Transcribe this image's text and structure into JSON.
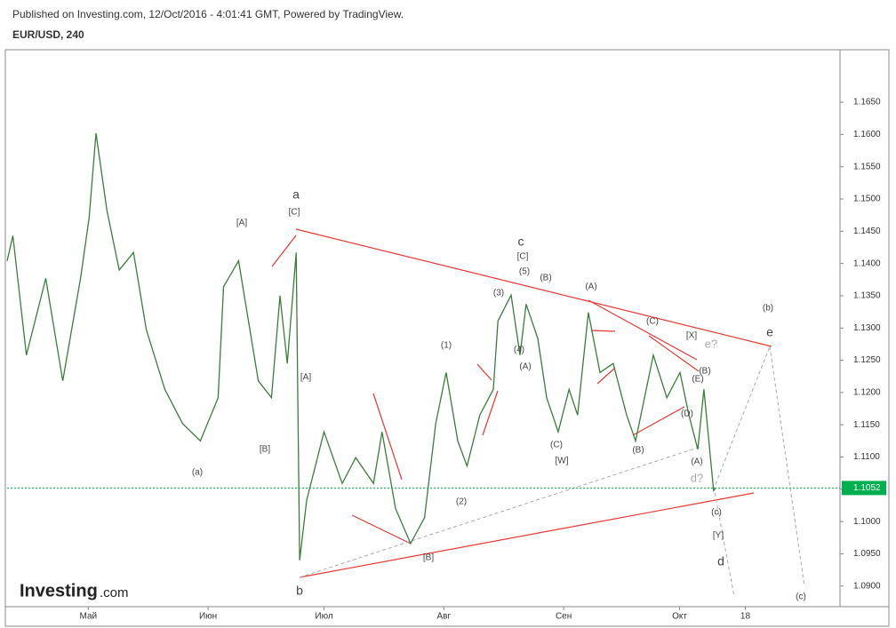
{
  "header": "Published on Investing.com, 12/Oct/2016 - 4:01:41 GMT, Powered by TradingView.",
  "chart_data": {
    "type": "line",
    "title": "EUR/USD, 240",
    "logo": "Investing",
    "logo_suffix": ".com",
    "x": [
      -21,
      -19.5,
      -16,
      -11,
      -6.6,
      -2,
      0.2,
      2,
      4.8,
      8,
      11.7,
      15,
      19.8,
      24.4,
      29,
      33.6,
      35,
      38.9,
      44,
      47.4,
      49.6,
      51.5,
      53.8,
      54.7,
      56.5,
      61,
      65.7,
      69.2,
      73.8,
      76,
      79.5,
      83.4,
      87,
      89.9,
      92.6,
      95.6,
      98,
      101.3,
      104.8,
      106,
      109.4,
      111.7,
      113.3,
      116.3,
      118.6,
      121.6,
      124.4,
      126.6,
      129.4,
      132.4,
      135.8,
      139.3,
      141.6,
      146.2,
      149.7,
      153.1,
      155.4,
      157.7,
      159.3,
      161.8,
      162.3
    ],
    "series": [
      {
        "name": "EUR/USD",
        "color": "#3a7d3a",
        "values": [
          1.1404,
          1.1443,
          1.1258,
          1.1377,
          1.1218,
          1.1377,
          1.147,
          1.1602,
          1.1483,
          1.139,
          1.1417,
          1.1298,
          1.1205,
          1.1152,
          1.1125,
          1.1192,
          1.1364,
          1.1404,
          1.1218,
          1.1192,
          1.135,
          1.1245,
          1.1417,
          1.094,
          1.1033,
          1.1139,
          1.1059,
          1.1099,
          1.1059,
          1.1139,
          1.102,
          1.0966,
          1.1006,
          1.1152,
          1.1231,
          1.1125,
          1.1086,
          1.1165,
          1.1205,
          1.1311,
          1.1351,
          1.1258,
          1.1337,
          1.1284,
          1.1192,
          1.1139,
          1.1205,
          1.1165,
          1.1324,
          1.1231,
          1.1245,
          1.1165,
          1.1125,
          1.1258,
          1.1192,
          1.1231,
          1.1165,
          1.1112,
          1.1205,
          1.1048,
          1.1052
        ]
      }
    ],
    "last_price": {
      "value": 1.1052,
      "label": "1.1052",
      "color": "#00b050"
    },
    "xlim": [
      -21,
      194.5
    ],
    "xticks": [
      {
        "value": 0,
        "label": "Май"
      },
      {
        "value": 31,
        "label": "Июн"
      },
      {
        "value": 61,
        "label": "Июл"
      },
      {
        "value": 92,
        "label": "Авг"
      },
      {
        "value": 123,
        "label": "Сен"
      },
      {
        "value": 153,
        "label": "Окт"
      },
      {
        "value": 170,
        "label": "18"
      }
    ],
    "ylim": [
      1.0868,
      1.173
    ],
    "yticks": [
      {
        "value": 1.09,
        "label": "1.0900"
      },
      {
        "value": 1.095,
        "label": "1.0950"
      },
      {
        "value": 1.1,
        "label": "1.1000"
      },
      {
        "value": 1.105,
        "label": "1.1050"
      },
      {
        "value": 1.11,
        "label": "1.1100"
      },
      {
        "value": 1.115,
        "label": "1.1150"
      },
      {
        "value": 1.12,
        "label": "1.1200"
      },
      {
        "value": 1.125,
        "label": "1.1250"
      },
      {
        "value": 1.13,
        "label": "1.1300"
      },
      {
        "value": 1.135,
        "label": "1.1350"
      },
      {
        "value": 1.14,
        "label": "1.1400"
      },
      {
        "value": 1.145,
        "label": "1.1450"
      },
      {
        "value": 1.15,
        "label": "1.1500"
      },
      {
        "value": 1.155,
        "label": "1.1550"
      },
      {
        "value": 1.16,
        "label": "1.1600"
      },
      {
        "value": 1.165,
        "label": "1.1650"
      }
    ],
    "annotations": [
      "a",
      "[C]",
      "[A]",
      "(a)",
      "[B]",
      "[A]",
      "b",
      "[B]",
      "(1)",
      "(2)",
      "(3)",
      "(4)",
      "(5)",
      "c",
      "[C]",
      "(B)",
      "(A)",
      "(C)",
      "[W]",
      "(A)",
      "(B)",
      "(C)",
      "[X]",
      "e?",
      "(E)",
      "(B)",
      "(D)",
      "(A)",
      "d?",
      "(c)",
      "[Y]",
      "d",
      "(b)",
      "e",
      "(c)"
    ]
  }
}
